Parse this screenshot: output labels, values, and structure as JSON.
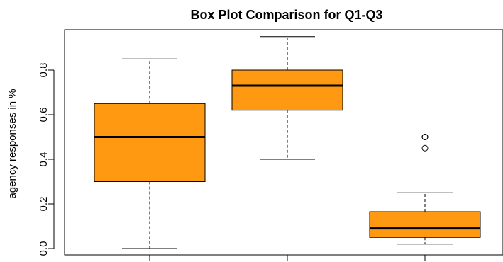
{
  "chart_data": {
    "type": "boxplot",
    "title": "Box Plot Comparison for Q1-Q3",
    "xlabel": "",
    "ylabel": "agency responses in %",
    "ylim": [
      0,
      0.95
    ],
    "yticks": [
      "0.0",
      "0.2",
      "0.4",
      "0.6",
      "0.8"
    ],
    "grid": false,
    "legend": "none",
    "box_color": "#ff9912",
    "boxes": [
      {
        "whisker_low": 0.0,
        "q1": 0.3,
        "median": 0.5,
        "q3": 0.65,
        "whisker_high": 0.85,
        "outliers": []
      },
      {
        "whisker_low": 0.4,
        "q1": 0.62,
        "median": 0.73,
        "q3": 0.8,
        "whisker_high": 0.95,
        "outliers": []
      },
      {
        "whisker_low": 0.02,
        "q1": 0.05,
        "median": 0.09,
        "q3": 0.165,
        "whisker_high": 0.25,
        "outliers": [
          0.45,
          0.5,
          0.5
        ]
      }
    ]
  }
}
